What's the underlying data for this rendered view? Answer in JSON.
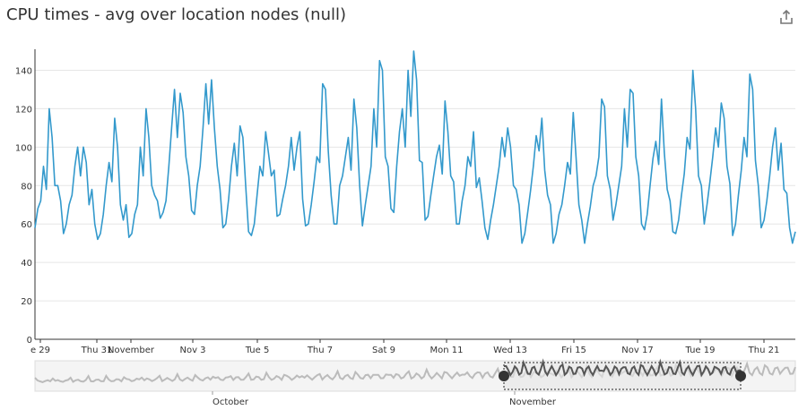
{
  "title": "CPU times - avg over location nodes (null)",
  "share_icon": "share-icon",
  "colors": {
    "series": "#3399cc",
    "grid": "#e6e6e6",
    "axis": "#333333",
    "text": "#333333",
    "navigator": "#999999",
    "navigator_selected": "#555555"
  },
  "chart_data": {
    "type": "line",
    "title": "CPU times - avg over location nodes (null)",
    "xlabel": "",
    "ylabel": "",
    "ylim": [
      0,
      150
    ],
    "y_ticks": [
      0,
      20,
      40,
      60,
      80,
      100,
      120,
      140
    ],
    "x_ticks": [
      "e 29",
      "Thu 31",
      "November",
      "Nov 3",
      "Tue 5",
      "Thu 7",
      "Sat 9",
      "Mon 11",
      "Wed 13",
      "Fri 15",
      "Nov 17",
      "Tue 19",
      "Thu 21"
    ],
    "navigator_labels": [
      "October",
      "November"
    ],
    "grid": true,
    "legend": "none",
    "series": [
      {
        "values": [
          58,
          68,
          72,
          90,
          78,
          120,
          105,
          80,
          80,
          72,
          55,
          60,
          70,
          75,
          90,
          100,
          85,
          100,
          92,
          70,
          78,
          60,
          52,
          55,
          65,
          80,
          92,
          82,
          115,
          100,
          70,
          62,
          70,
          53,
          55,
          65,
          70,
          100,
          85,
          120,
          105,
          80,
          75,
          72,
          63,
          66,
          72,
          90,
          110,
          130,
          105,
          128,
          118,
          95,
          85,
          67,
          65,
          80,
          90,
          110,
          133,
          112,
          135,
          110,
          90,
          78,
          58,
          60,
          73,
          90,
          102,
          85,
          111,
          105,
          80,
          56,
          54,
          60,
          75,
          90,
          85,
          108,
          97,
          85,
          88,
          64,
          65,
          73,
          80,
          90,
          105,
          88,
          100,
          108,
          73,
          59,
          60,
          70,
          82,
          95,
          92,
          133,
          130,
          98,
          75,
          60,
          60,
          80,
          85,
          95,
          105,
          88,
          125,
          110,
          80,
          59,
          70,
          80,
          90,
          120,
          100,
          145,
          140,
          95,
          90,
          68,
          66,
          90,
          108,
          120,
          100,
          140,
          116,
          150,
          135,
          93,
          92,
          62,
          64,
          75,
          85,
          95,
          101,
          86,
          124,
          108,
          85,
          82,
          60,
          60,
          72,
          80,
          95,
          90,
          108,
          79,
          84,
          72,
          58,
          52,
          62,
          70,
          80,
          90,
          105,
          95,
          110,
          100,
          80,
          78,
          70,
          50,
          55,
          66,
          77,
          90,
          106,
          98,
          115,
          88,
          75,
          70,
          50,
          55,
          65,
          70,
          80,
          92,
          86,
          118,
          95,
          70,
          62,
          50,
          60,
          69,
          80,
          85,
          95,
          125,
          121,
          85,
          78,
          62,
          70,
          80,
          90,
          120,
          100,
          130,
          128,
          95,
          85,
          60,
          57,
          65,
          80,
          94,
          103,
          91,
          125,
          97,
          78,
          72,
          56,
          55,
          62,
          75,
          86,
          105,
          99,
          140,
          120,
          85,
          80,
          60,
          70,
          82,
          95,
          110,
          100,
          123,
          115,
          90,
          81,
          54,
          60,
          75,
          88,
          105,
          95,
          138,
          130,
          93,
          80,
          58,
          62,
          72,
          85,
          100,
          110,
          88,
          102,
          78,
          76,
          58,
          50,
          56
        ]
      }
    ]
  }
}
